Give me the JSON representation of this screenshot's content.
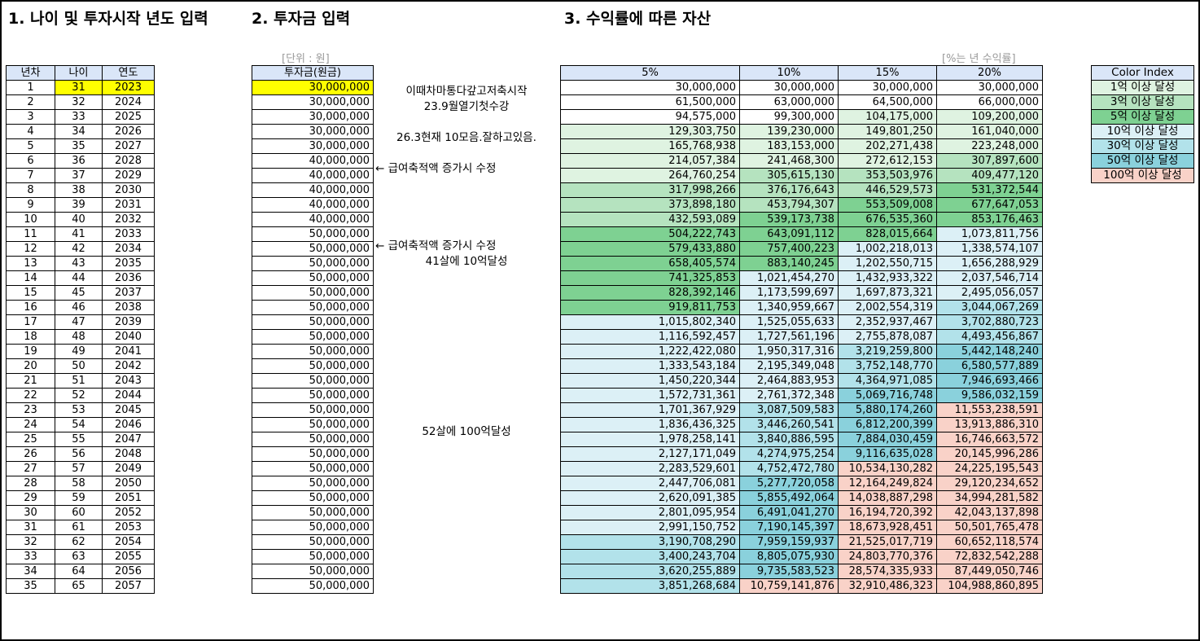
{
  "headings": {
    "h1": "1. 나이 및 투자시작 년도 입력",
    "h2": "2. 투자금 입력",
    "h3": "3. 수익률에 따른 자산"
  },
  "unit_label": "[단위 : 원]",
  "rate_label": "[%는 년 수익률]",
  "years_table": {
    "headers": [
      "년차",
      "나이",
      "연도"
    ],
    "rows": [
      [
        "1",
        "31",
        "2023"
      ],
      [
        "2",
        "32",
        "2024"
      ],
      [
        "3",
        "33",
        "2025"
      ],
      [
        "4",
        "34",
        "2026"
      ],
      [
        "5",
        "35",
        "2027"
      ],
      [
        "6",
        "36",
        "2028"
      ],
      [
        "7",
        "37",
        "2029"
      ],
      [
        "8",
        "38",
        "2030"
      ],
      [
        "9",
        "39",
        "2031"
      ],
      [
        "10",
        "40",
        "2032"
      ],
      [
        "11",
        "41",
        "2033"
      ],
      [
        "12",
        "42",
        "2034"
      ],
      [
        "13",
        "43",
        "2035"
      ],
      [
        "14",
        "44",
        "2036"
      ],
      [
        "15",
        "45",
        "2037"
      ],
      [
        "16",
        "46",
        "2038"
      ],
      [
        "17",
        "47",
        "2039"
      ],
      [
        "18",
        "48",
        "2040"
      ],
      [
        "19",
        "49",
        "2041"
      ],
      [
        "20",
        "50",
        "2042"
      ],
      [
        "21",
        "51",
        "2043"
      ],
      [
        "22",
        "52",
        "2044"
      ],
      [
        "23",
        "53",
        "2045"
      ],
      [
        "24",
        "54",
        "2046"
      ],
      [
        "25",
        "55",
        "2047"
      ],
      [
        "26",
        "56",
        "2048"
      ],
      [
        "27",
        "57",
        "2049"
      ],
      [
        "28",
        "58",
        "2050"
      ],
      [
        "29",
        "59",
        "2051"
      ],
      [
        "30",
        "60",
        "2052"
      ],
      [
        "31",
        "61",
        "2053"
      ],
      [
        "32",
        "62",
        "2054"
      ],
      [
        "33",
        "63",
        "2055"
      ],
      [
        "34",
        "64",
        "2056"
      ],
      [
        "35",
        "65",
        "2057"
      ]
    ]
  },
  "invest_table": {
    "header": "투자금(원금)",
    "values": [
      "30,000,000",
      "30,000,000",
      "30,000,000",
      "30,000,000",
      "30,000,000",
      "40,000,000",
      "40,000,000",
      "40,000,000",
      "40,000,000",
      "40,000,000",
      "50,000,000",
      "50,000,000",
      "50,000,000",
      "50,000,000",
      "50,000,000",
      "50,000,000",
      "50,000,000",
      "50,000,000",
      "50,000,000",
      "50,000,000",
      "50,000,000",
      "50,000,000",
      "50,000,000",
      "50,000,000",
      "50,000,000",
      "50,000,000",
      "50,000,000",
      "50,000,000",
      "50,000,000",
      "50,000,000",
      "50,000,000",
      "50,000,000",
      "50,000,000",
      "50,000,000",
      "50,000,000"
    ]
  },
  "notes": [
    {
      "row": 0,
      "text": "이때차마통다갚고저축시작"
    },
    {
      "row": 1,
      "text": "23.9월열기첫수강"
    },
    {
      "row": 3,
      "text": "26.3현재 10모음.잘하고있음."
    },
    {
      "row": 5,
      "text": "← 급여축적액 증가시 수정"
    },
    {
      "row": 10,
      "text": "← 급여축적액 증가시 수정"
    },
    {
      "row": 11,
      "text": "41살에 10억달성"
    },
    {
      "row": 22,
      "text": "52살에 100억달성"
    }
  ],
  "asset_table": {
    "headers": [
      "5%",
      "10%",
      "15%",
      "20%"
    ],
    "rows": [
      [
        "30,000,000",
        "30,000,000",
        "30,000,000",
        "30,000,000"
      ],
      [
        "61,500,000",
        "63,000,000",
        "64,500,000",
        "66,000,000"
      ],
      [
        "94,575,000",
        "99,300,000",
        "104,175,000",
        "109,200,000"
      ],
      [
        "129,303,750",
        "139,230,000",
        "149,801,250",
        "161,040,000"
      ],
      [
        "165,768,938",
        "183,153,000",
        "202,271,438",
        "223,248,000"
      ],
      [
        "214,057,384",
        "241,468,300",
        "272,612,153",
        "307,897,600"
      ],
      [
        "264,760,254",
        "305,615,130",
        "353,503,976",
        "409,477,120"
      ],
      [
        "317,998,266",
        "376,176,643",
        "446,529,573",
        "531,372,544"
      ],
      [
        "373,898,180",
        "453,794,307",
        "553,509,008",
        "677,647,053"
      ],
      [
        "432,593,089",
        "539,173,738",
        "676,535,360",
        "853,176,463"
      ],
      [
        "504,222,743",
        "643,091,112",
        "828,015,664",
        "1,073,811,756"
      ],
      [
        "579,433,880",
        "757,400,223",
        "1,002,218,013",
        "1,338,574,107"
      ],
      [
        "658,405,574",
        "883,140,245",
        "1,202,550,715",
        "1,656,288,929"
      ],
      [
        "741,325,853",
        "1,021,454,270",
        "1,432,933,322",
        "2,037,546,714"
      ],
      [
        "828,392,146",
        "1,173,599,697",
        "1,697,873,321",
        "2,495,056,057"
      ],
      [
        "919,811,753",
        "1,340,959,667",
        "2,002,554,319",
        "3,044,067,269"
      ],
      [
        "1,015,802,340",
        "1,525,055,633",
        "2,352,937,467",
        "3,702,880,723"
      ],
      [
        "1,116,592,457",
        "1,727,561,196",
        "2,755,878,087",
        "4,493,456,867"
      ],
      [
        "1,222,422,080",
        "1,950,317,316",
        "3,219,259,800",
        "5,442,148,240"
      ],
      [
        "1,333,543,184",
        "2,195,349,048",
        "3,752,148,770",
        "6,580,577,889"
      ],
      [
        "1,450,220,344",
        "2,464,883,953",
        "4,364,971,085",
        "7,946,693,466"
      ],
      [
        "1,572,731,361",
        "2,761,372,348",
        "5,069,716,748",
        "9,586,032,159"
      ],
      [
        "1,701,367,929",
        "3,087,509,583",
        "5,880,174,260",
        "11,553,238,591"
      ],
      [
        "1,836,436,325",
        "3,446,260,541",
        "6,812,200,399",
        "13,913,886,310"
      ],
      [
        "1,978,258,141",
        "3,840,886,595",
        "7,884,030,459",
        "16,746,663,572"
      ],
      [
        "2,127,171,049",
        "4,274,975,254",
        "9,116,635,028",
        "20,145,996,286"
      ],
      [
        "2,283,529,601",
        "4,752,472,780",
        "10,534,130,282",
        "24,225,195,543"
      ],
      [
        "2,447,706,081",
        "5,277,720,058",
        "12,164,249,824",
        "29,120,234,652"
      ],
      [
        "2,620,091,385",
        "5,855,492,064",
        "14,038,887,298",
        "34,994,281,582"
      ],
      [
        "2,801,095,954",
        "6,491,041,270",
        "16,194,720,392",
        "42,043,137,898"
      ],
      [
        "2,991,150,752",
        "7,190,145,397",
        "18,673,928,451",
        "50,501,765,478"
      ],
      [
        "3,190,708,290",
        "7,959,159,937",
        "21,525,017,719",
        "60,652,118,574"
      ],
      [
        "3,400,243,704",
        "8,805,075,930",
        "24,803,770,376",
        "72,832,542,288"
      ],
      [
        "3,620,255,889",
        "9,735,583,523",
        "28,574,335,933",
        "87,449,050,746"
      ],
      [
        "3,851,268,684",
        "10,759,141,876",
        "32,910,486,323",
        "104,988,860,895"
      ]
    ]
  },
  "color_index": {
    "header": "Color Index",
    "items": [
      {
        "label": "1억 이상 달성",
        "color": "#dff3e1"
      },
      {
        "label": "3억 이상 달성",
        "color": "#b5e3bf"
      },
      {
        "label": "5억 이상 달성",
        "color": "#7ed192"
      },
      {
        "label": "10억 이상 달성",
        "color": "#dcf0f6"
      },
      {
        "label": "30억 이상 달성",
        "color": "#b2e2ea"
      },
      {
        "label": "50억 이상 달성",
        "color": "#8ad1dc"
      },
      {
        "label": "100억 이상 달성",
        "color": "#f9d2c8"
      }
    ]
  }
}
